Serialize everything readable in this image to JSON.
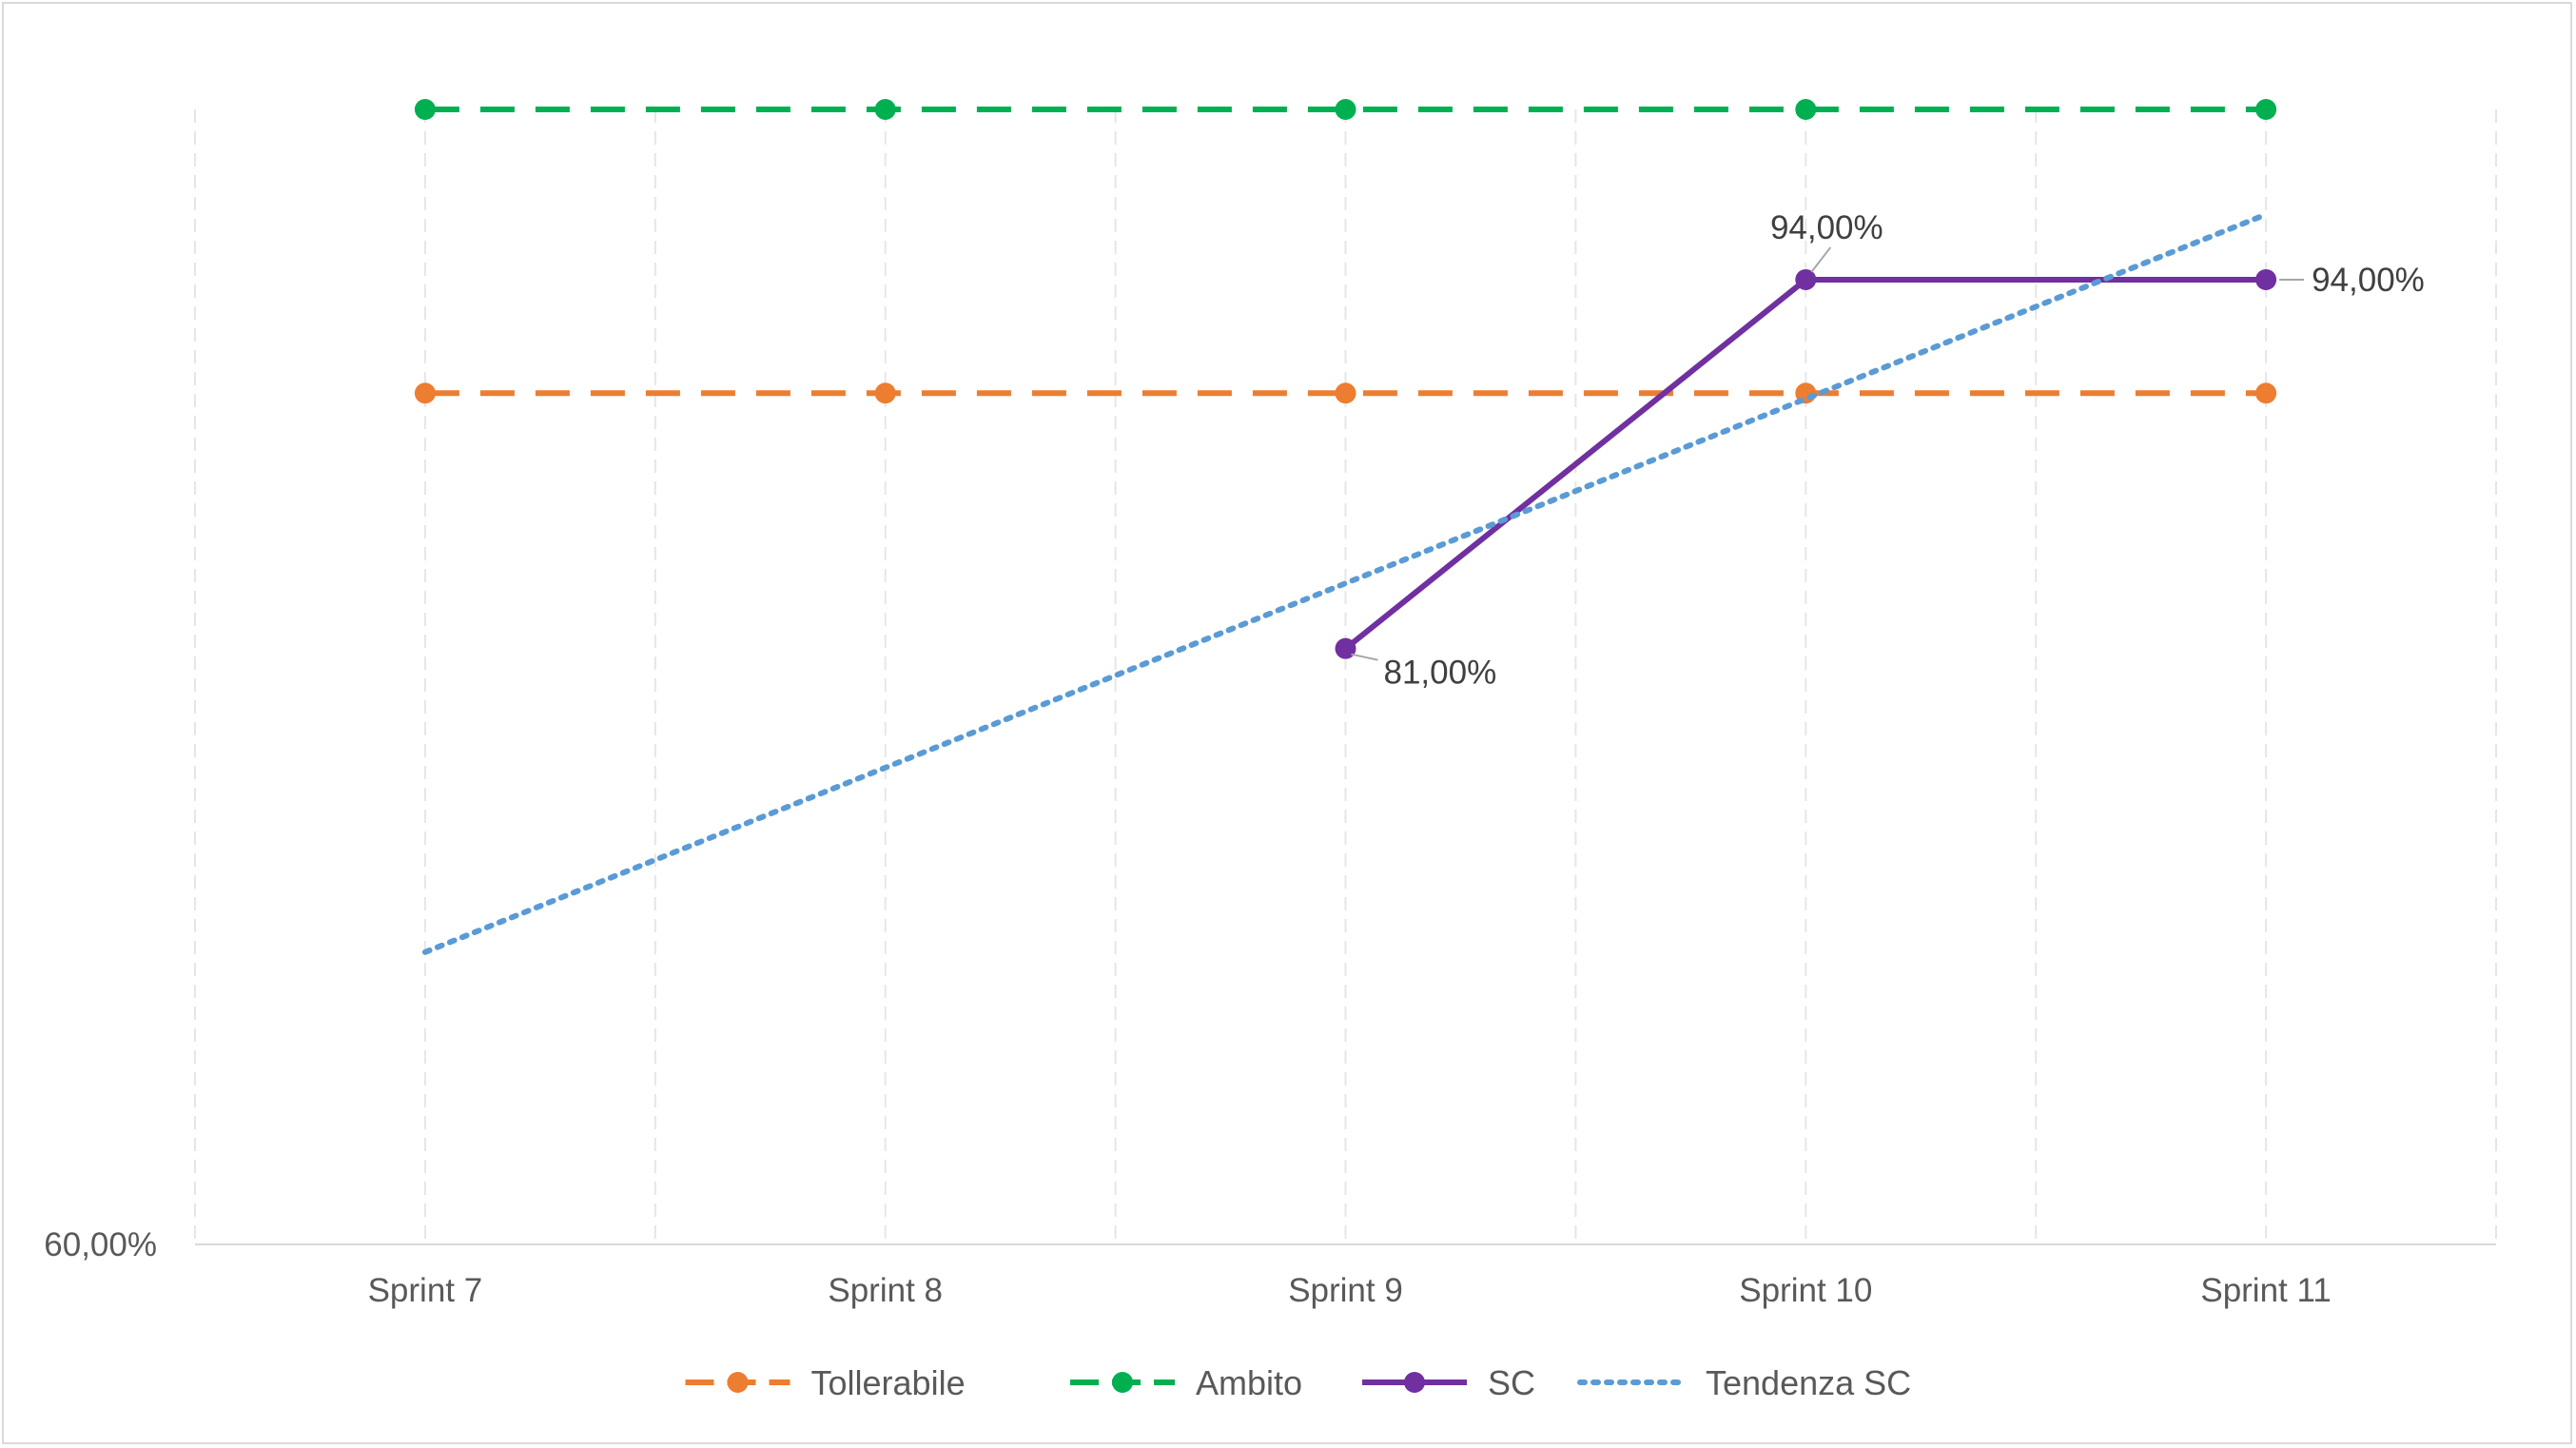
{
  "chart_data": {
    "type": "line",
    "categories": [
      "Sprint 7",
      "Sprint 8",
      "Sprint 9",
      "Sprint 10",
      "Sprint 11"
    ],
    "y_tick_labels": [
      {
        "value": 60,
        "label": "60,00%"
      }
    ],
    "ylim": [
      60,
      100
    ],
    "grid": {
      "vertical": true,
      "horizontal": false
    },
    "legend": "bottom",
    "series": [
      {
        "name": "Tollerabile",
        "values": [
          90,
          90,
          90,
          90,
          90
        ],
        "color": "#ed7d31",
        "style": "dashed",
        "marker": true
      },
      {
        "name": "Ambito",
        "values": [
          100,
          100,
          100,
          100,
          100
        ],
        "color": "#00b050",
        "style": "dashed",
        "marker": true
      },
      {
        "name": "SC",
        "values": [
          null,
          null,
          81,
          94,
          94
        ],
        "color": "#7030a0",
        "style": "solid",
        "marker": true,
        "labels": [
          null,
          null,
          "81,00%",
          "94,00%",
          "94,00%"
        ]
      },
      {
        "name": "Tendenza SC",
        "values": [
          70.3,
          76.8,
          83.3,
          89.8,
          96.3
        ],
        "color": "#5b9bd5",
        "style": "dotted",
        "marker": false
      }
    ]
  }
}
